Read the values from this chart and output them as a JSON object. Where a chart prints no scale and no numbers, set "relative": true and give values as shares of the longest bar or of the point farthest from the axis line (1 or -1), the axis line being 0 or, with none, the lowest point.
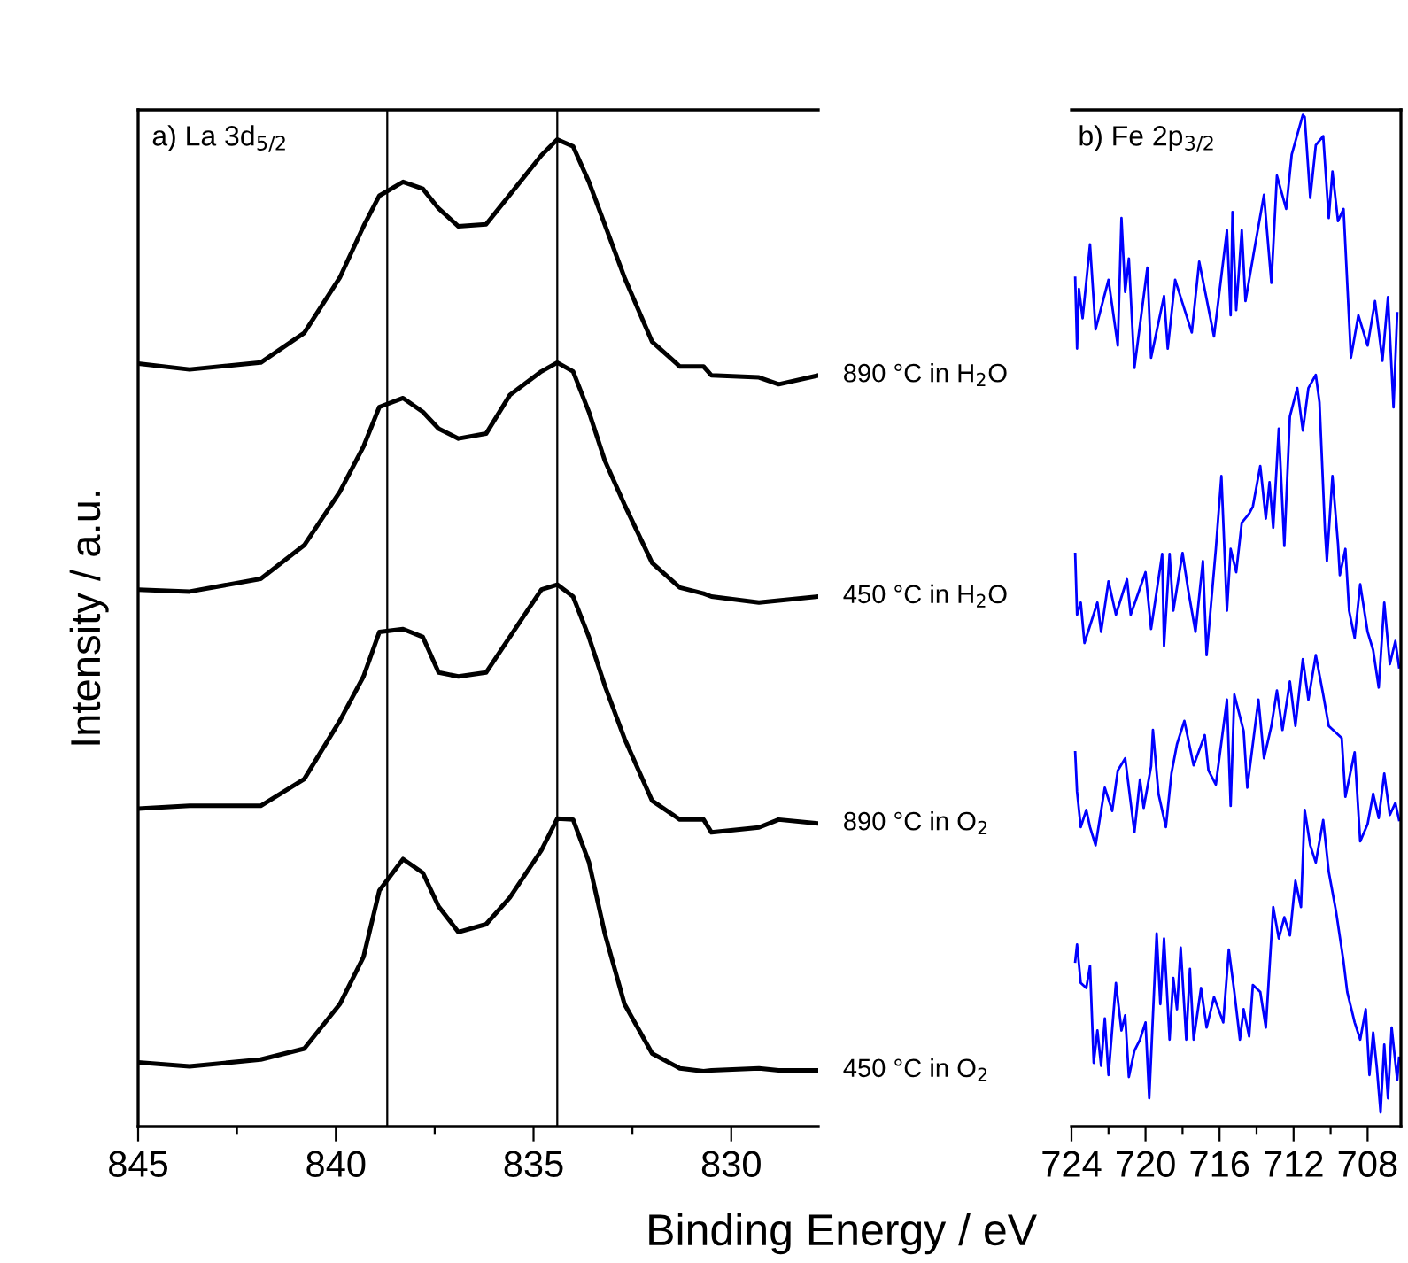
{
  "chart_data": [
    {
      "type": "line",
      "title": "a) La 3d$_{5/2}$",
      "ylabel": "Intensity / a.u.",
      "xlabel": "Binding Energy / eV",
      "relative": true,
      "tick_labels": "x",
      "grid": false,
      "legend": false,
      "marker": "none",
      "line_style": "solid",
      "xlim": [
        845,
        827.8
      ],
      "xticks": [
        845,
        {
          "value": 842.5,
          "label": null
        },
        840,
        {
          "value": 837.5,
          "label": null
        },
        835,
        {
          "value": 832.5,
          "label": null
        },
        830
      ],
      "ref_lines": [
        {
          "axis": "x",
          "value": 838.7,
          "color": "#000000"
        },
        {
          "axis": "x",
          "value": 834.4,
          "color": "#000000"
        }
      ],
      "series": [
        {
          "name": "890 °C in H$_{2}$O",
          "color": "#000000",
          "x": [
            845.0,
            843.7,
            841.9,
            840.8,
            839.9,
            839.3,
            838.9,
            838.3,
            837.8,
            837.4,
            836.9,
            836.2,
            835.6,
            834.8,
            834.4,
            834.0,
            833.6,
            833.2,
            832.7,
            832.0,
            831.3,
            830.7,
            830.5,
            829.3,
            828.8,
            827.8
          ],
          "values": [
            0.773,
            0.767,
            0.774,
            0.804,
            0.86,
            0.912,
            0.943,
            0.957,
            0.95,
            0.93,
            0.912,
            0.914,
            0.944,
            0.984,
            1.0,
            0.993,
            0.957,
            0.914,
            0.86,
            0.795,
            0.77,
            0.77,
            0.761,
            0.759,
            0.752,
            0.761
          ]
        },
        {
          "name": "450 °C in H$_{2}$O",
          "color": "#000000",
          "x": [
            845.0,
            843.7,
            841.9,
            840.8,
            839.9,
            839.3,
            838.9,
            838.3,
            837.8,
            837.4,
            836.9,
            836.2,
            835.6,
            834.8,
            834.4,
            834.0,
            833.6,
            833.2,
            832.7,
            832.0,
            831.3,
            830.7,
            830.5,
            829.3,
            828.8,
            827.8
          ],
          "values": [
            0.544,
            0.542,
            0.555,
            0.589,
            0.643,
            0.689,
            0.729,
            0.738,
            0.724,
            0.707,
            0.697,
            0.702,
            0.741,
            0.765,
            0.774,
            0.765,
            0.724,
            0.675,
            0.63,
            0.571,
            0.546,
            0.54,
            0.537,
            0.531,
            0.533,
            0.537
          ]
        },
        {
          "name": "890 °C in O$_{2}$",
          "color": "#000000",
          "x": [
            845.0,
            843.7,
            841.9,
            840.8,
            839.9,
            839.3,
            838.9,
            838.3,
            837.8,
            837.4,
            836.9,
            836.2,
            835.6,
            834.8,
            834.4,
            834.0,
            833.6,
            833.2,
            832.7,
            832.0,
            831.3,
            830.7,
            830.5,
            829.3,
            828.8,
            827.8
          ],
          "values": [
            0.322,
            0.325,
            0.325,
            0.352,
            0.411,
            0.456,
            0.501,
            0.504,
            0.496,
            0.46,
            0.456,
            0.46,
            0.496,
            0.544,
            0.549,
            0.537,
            0.496,
            0.447,
            0.393,
            0.33,
            0.311,
            0.311,
            0.298,
            0.303,
            0.311,
            0.307
          ]
        },
        {
          "name": "450 °C in O$_{2}$",
          "color": "#000000",
          "x": [
            845.0,
            843.7,
            841.9,
            840.8,
            839.9,
            839.3,
            838.9,
            838.3,
            837.8,
            837.4,
            836.9,
            836.2,
            835.6,
            834.8,
            834.4,
            834.0,
            833.6,
            833.2,
            832.7,
            832.0,
            831.3,
            830.7,
            830.5,
            829.3,
            828.8,
            827.8
          ],
          "values": [
            0.065,
            0.061,
            0.068,
            0.079,
            0.124,
            0.172,
            0.239,
            0.271,
            0.257,
            0.223,
            0.197,
            0.205,
            0.232,
            0.28,
            0.312,
            0.311,
            0.268,
            0.196,
            0.124,
            0.074,
            0.059,
            0.056,
            0.057,
            0.059,
            0.057,
            0.057
          ]
        }
      ]
    },
    {
      "type": "line",
      "title": "b) Fe 2p$_{3/2}$",
      "relative": true,
      "tick_labels": "x",
      "grid": false,
      "legend": false,
      "marker": "none",
      "line_style": "solid",
      "xlim": [
        724,
        706.2
      ],
      "xticks": [
        724,
        {
          "value": 722,
          "label": null
        },
        720,
        {
          "value": 718,
          "label": null
        },
        716,
        {
          "value": 714,
          "label": null
        },
        712,
        {
          "value": 710,
          "label": null
        },
        708
      ],
      "series": [
        {
          "color": "#0000ff",
          "x": [
            723.8,
            723.7,
            723.6,
            723.4,
            723.0,
            722.7,
            722.3,
            722.0,
            721.5,
            721.3,
            721.1,
            720.9,
            720.6,
            719.9,
            719.7,
            719.0,
            718.8,
            718.4,
            717.5,
            717.1,
            716.3,
            715.6,
            715.4,
            715.3,
            715.1,
            714.8,
            714.6,
            714.1,
            713.6,
            713.2,
            712.9,
            712.4,
            712.1,
            711.5,
            711.4,
            711.1,
            710.8,
            710.4,
            710.1,
            709.9,
            709.6,
            709.3,
            708.9,
            708.5,
            708.0,
            707.6,
            707.2,
            706.9,
            706.6,
            706.4
          ],
          "values": [
            0.839,
            0.769,
            0.828,
            0.799,
            0.872,
            0.788,
            0.816,
            0.837,
            0.772,
            0.898,
            0.825,
            0.858,
            0.75,
            0.849,
            0.76,
            0.821,
            0.769,
            0.837,
            0.785,
            0.855,
            0.781,
            0.886,
            0.802,
            0.904,
            0.807,
            0.886,
            0.816,
            0.869,
            0.921,
            0.834,
            0.94,
            0.907,
            0.961,
            1.0,
            0.998,
            0.918,
            0.97,
            0.979,
            0.898,
            0.944,
            0.895,
            0.907,
            0.76,
            0.802,
            0.772,
            0.816,
            0.757,
            0.82,
            0.711,
            0.804
          ]
        },
        {
          "color": "#0000ff",
          "x": [
            723.8,
            723.7,
            723.5,
            723.3,
            722.6,
            722.4,
            722.0,
            721.6,
            721.0,
            720.8,
            720.0,
            719.7,
            719.1,
            719.0,
            718.7,
            718.5,
            718.0,
            717.7,
            717.3,
            716.9,
            716.7,
            716.2,
            715.9,
            715.6,
            715.4,
            715.1,
            714.8,
            714.4,
            714.2,
            713.8,
            713.5,
            713.3,
            713.1,
            712.8,
            712.5,
            712.2,
            711.8,
            711.5,
            711.2,
            710.8,
            710.6,
            710.3,
            710.2,
            709.9,
            709.6,
            709.5,
            709.2,
            709.0,
            708.7,
            708.4,
            708.0,
            707.7,
            707.4,
            707.1,
            706.8,
            706.5,
            706.3
          ],
          "values": [
            0.566,
            0.506,
            0.518,
            0.478,
            0.518,
            0.489,
            0.539,
            0.506,
            0.541,
            0.506,
            0.548,
            0.492,
            0.566,
            0.475,
            0.566,
            0.51,
            0.567,
            0.531,
            0.489,
            0.559,
            0.466,
            0.571,
            0.643,
            0.51,
            0.571,
            0.548,
            0.597,
            0.606,
            0.613,
            0.653,
            0.601,
            0.637,
            0.592,
            0.69,
            0.574,
            0.702,
            0.73,
            0.688,
            0.73,
            0.743,
            0.716,
            0.588,
            0.559,
            0.643,
            0.576,
            0.545,
            0.571,
            0.51,
            0.483,
            0.536,
            0.489,
            0.471,
            0.434,
            0.518,
            0.457,
            0.48,
            0.454
          ]
        },
        {
          "color": "#0000ff",
          "x": [
            723.8,
            723.7,
            723.5,
            723.2,
            723.0,
            722.7,
            722.2,
            721.8,
            721.5,
            721.1,
            720.6,
            720.3,
            720.1,
            719.7,
            719.6,
            719.3,
            718.9,
            718.6,
            718.3,
            717.9,
            717.4,
            716.8,
            716.6,
            716.2,
            715.6,
            715.4,
            715.2,
            714.7,
            714.5,
            713.9,
            713.6,
            713.2,
            712.9,
            712.6,
            712.2,
            711.9,
            711.5,
            711.2,
            710.8,
            710.4,
            710.1,
            709.4,
            709.2,
            708.7,
            708.4,
            708.0,
            707.7,
            707.4,
            707.1,
            706.8,
            706.5,
            706.3
          ],
          "values": [
            0.37,
            0.331,
            0.296,
            0.313,
            0.296,
            0.278,
            0.335,
            0.312,
            0.352,
            0.364,
            0.291,
            0.343,
            0.315,
            0.356,
            0.392,
            0.329,
            0.296,
            0.349,
            0.378,
            0.401,
            0.357,
            0.387,
            0.352,
            0.338,
            0.422,
            0.317,
            0.427,
            0.391,
            0.335,
            0.422,
            0.364,
            0.396,
            0.431,
            0.392,
            0.44,
            0.396,
            0.462,
            0.422,
            0.466,
            0.427,
            0.396,
            0.384,
            0.326,
            0.37,
            0.282,
            0.299,
            0.329,
            0.305,
            0.349,
            0.308,
            0.32,
            0.303
          ]
        },
        {
          "color": "#0000ff",
          "x": [
            723.8,
            723.7,
            723.5,
            723.2,
            723.0,
            722.8,
            722.6,
            722.4,
            722.2,
            722.0,
            721.6,
            721.3,
            721.1,
            720.9,
            720.6,
            720.3,
            720.0,
            719.8,
            719.4,
            719.2,
            719.0,
            718.7,
            718.5,
            718.3,
            718.1,
            717.8,
            717.6,
            717.4,
            717.0,
            716.7,
            716.3,
            715.8,
            715.5,
            715.2,
            714.9,
            714.7,
            714.4,
            714.2,
            713.8,
            713.5,
            713.1,
            712.8,
            712.5,
            712.2,
            711.9,
            711.6,
            711.4,
            711.1,
            710.8,
            710.4,
            710.1,
            709.7,
            709.3,
            709.1,
            708.7,
            708.4,
            708.1,
            707.9,
            707.7,
            707.5,
            707.3,
            707.1,
            706.9,
            706.7,
            706.4,
            706.3
          ],
          "values": [
            0.163,
            0.18,
            0.142,
            0.137,
            0.159,
            0.063,
            0.095,
            0.06,
            0.107,
            0.051,
            0.142,
            0.095,
            0.11,
            0.049,
            0.075,
            0.086,
            0.103,
            0.028,
            0.191,
            0.121,
            0.186,
            0.086,
            0.147,
            0.116,
            0.177,
            0.086,
            0.156,
            0.086,
            0.137,
            0.098,
            0.128,
            0.103,
            0.175,
            0.133,
            0.086,
            0.116,
            0.089,
            0.14,
            0.133,
            0.098,
            0.217,
            0.186,
            0.207,
            0.189,
            0.243,
            0.217,
            0.313,
            0.278,
            0.261,
            0.303,
            0.252,
            0.212,
            0.163,
            0.133,
            0.103,
            0.086,
            0.116,
            0.051,
            0.093,
            0.058,
            0.014,
            0.081,
            0.028,
            0.098,
            0.046,
            0.068
          ]
        }
      ]
    }
  ]
}
